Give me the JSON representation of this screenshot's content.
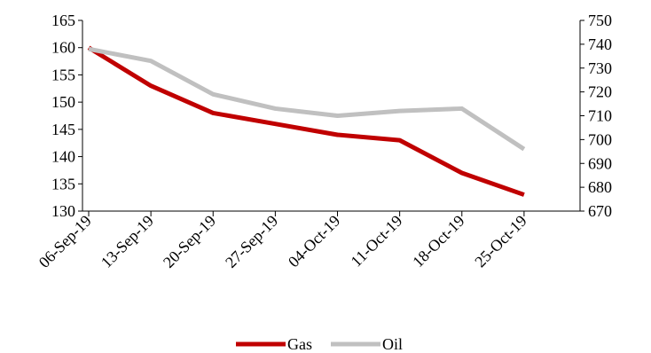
{
  "chart_data": {
    "type": "line",
    "categories": [
      "06-Sep-19",
      "13-Sep-19",
      "20-Sep-19",
      "27-Sep-19",
      "04-Oct-19",
      "11-Oct-19",
      "18-Oct-19",
      "25-Oct-19"
    ],
    "series": [
      {
        "name": "Gas",
        "axis": "left",
        "color": "#c00000",
        "values": [
          160,
          153,
          148,
          146,
          144,
          143,
          137,
          133
        ]
      },
      {
        "name": "Oil",
        "axis": "right",
        "color": "#c0c0c0",
        "values": [
          738,
          733,
          719,
          713,
          710,
          712,
          713,
          696
        ]
      }
    ],
    "y_left": {
      "min": 130,
      "max": 165,
      "step": 5,
      "ticks": [
        "130",
        "135",
        "140",
        "145",
        "150",
        "155",
        "160",
        "165"
      ]
    },
    "y_right": {
      "min": 670,
      "max": 750,
      "step": 10,
      "ticks": [
        "670",
        "680",
        "690",
        "700",
        "710",
        "720",
        "730",
        "740",
        "750"
      ]
    },
    "legend_position": "bottom",
    "grid": false
  }
}
